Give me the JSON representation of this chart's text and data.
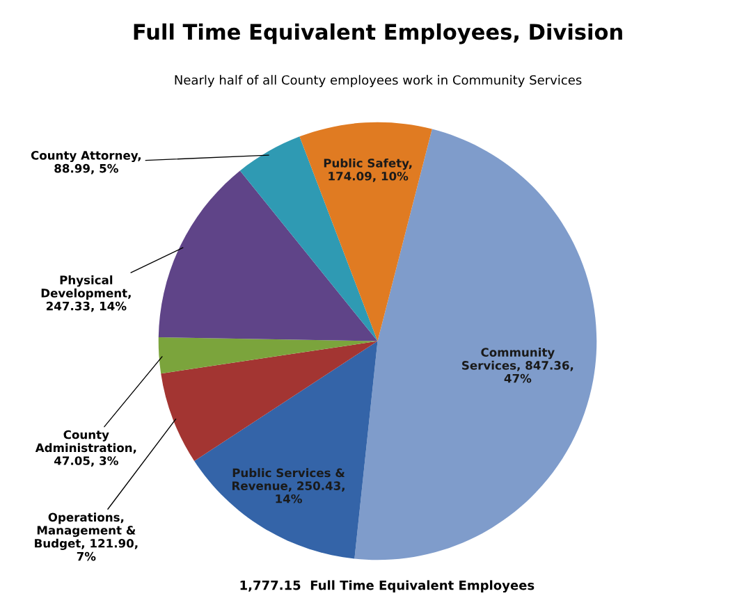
{
  "chart_data": {
    "type": "pie",
    "title": "Full Time Equivalent Employees, Division",
    "subtitle": "Nearly half of all County employees work in Community Services",
    "categories": [
      "Community Services",
      "Public Services & Revenue",
      "Operations, Management & Budget",
      "County Administration",
      "Physical Development",
      "County Attorney",
      "Public Safety"
    ],
    "values": [
      847.36,
      250.43,
      121.9,
      47.05,
      247.33,
      88.99,
      174.09
    ],
    "colors": [
      "#7f9ccb",
      "#3464a8",
      "#a33532",
      "#7ba43c",
      "#5f4488",
      "#2f9ab3",
      "#e07b22"
    ],
    "value_labels": [
      ", 847.36, 47%",
      ", 250.43, 14%",
      ", 121.90, 7%",
      ", 47.05, 3%",
      ", 247.33, 14%",
      ", 88.99, 5%",
      ", 174.09, 10%"
    ],
    "annotations": [
      "1,777.15  Full Time Equivalent Employees"
    ]
  }
}
